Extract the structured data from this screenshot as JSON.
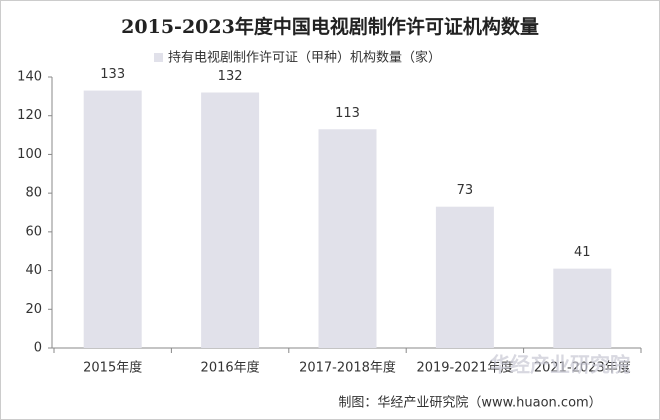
{
  "chart_data": {
    "type": "bar",
    "title": "2015-2023年度中国电视剧制作许可证机构数量",
    "series": [
      {
        "name": "持有电视剧制作许可证（甲种）机构数量（家）",
        "color": "#e1e1ea",
        "values": [
          133,
          132,
          113,
          73,
          41
        ]
      }
    ],
    "categories": [
      "2015年度",
      "2016年度",
      "2017-2018年度",
      "2019-2021年度",
      "2021-2023年度"
    ],
    "ylim": [
      0,
      140
    ],
    "yticks": [
      0,
      20,
      40,
      60,
      80,
      100,
      120,
      140
    ],
    "source": "制图：华经产业研究院（www.huaon.com）",
    "watermark": "华经产业研究院"
  }
}
